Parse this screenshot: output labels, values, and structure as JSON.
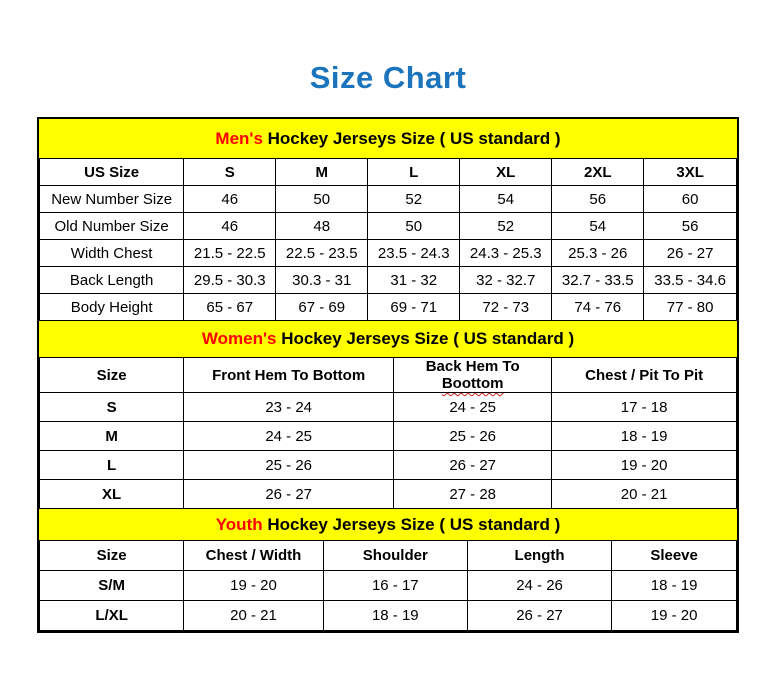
{
  "page": {
    "title": "Size Chart",
    "title_color": "#1c75bc",
    "background": "#ffffff"
  },
  "colors": {
    "banner_bg": "#ffff00",
    "accent_red": "#ff0000",
    "squiggle_red": "#cc1f1f",
    "border": "#000000",
    "text": "#000000"
  },
  "chart_data": [
    {
      "type": "table",
      "title": "Men's Hockey Jerseys Size ( US standard )",
      "title_highlight": "Men's",
      "title_rest": " Hockey Jerseys Size ( US standard )",
      "columns": [
        "US Size",
        "S",
        "M",
        "L",
        "XL",
        "2XL",
        "3XL"
      ],
      "rows": [
        {
          "label": "New Number Size",
          "values": [
            "46",
            "50",
            "52",
            "54",
            "56",
            "60"
          ]
        },
        {
          "label": "Old Number Size",
          "values": [
            "46",
            "48",
            "50",
            "52",
            "54",
            "56"
          ]
        },
        {
          "label": "Width Chest",
          "values": [
            "21.5 - 22.5",
            "22.5 - 23.5",
            "23.5 - 24.3",
            "24.3 - 25.3",
            "25.3 - 26",
            "26 - 27"
          ]
        },
        {
          "label": "Back Length",
          "values": [
            "29.5 - 30.3",
            "30.3 - 31",
            "31 - 32",
            "32 - 32.7",
            "32.7 - 33.5",
            "33.5 - 34.6"
          ]
        },
        {
          "label": "Body Height",
          "values": [
            "65 - 67",
            "67 - 69",
            "69 - 71",
            "72 - 73",
            "74 - 76",
            "77 - 80"
          ]
        }
      ],
      "col_widths_pct": [
        20.7,
        13.2,
        13.2,
        13.2,
        13.2,
        13.2,
        13.3
      ]
    },
    {
      "type": "table",
      "title": "Women's Hockey Jerseys Size ( US standard )",
      "title_highlight": "Women's",
      "title_rest": " Hockey Jerseys Size ( US standard )",
      "columns": [
        "Size",
        "Front Hem To Bottom",
        "Back Hem To Boottom",
        "Chest / Pit To Pit"
      ],
      "spellcheck_underline": {
        "column_index": 2,
        "word": "Boottom"
      },
      "rows": [
        {
          "label": "S",
          "values": [
            "23 - 24",
            "24 - 25",
            "17 - 18"
          ]
        },
        {
          "label": "M",
          "values": [
            "24 - 25",
            "25 - 26",
            "18 - 19"
          ]
        },
        {
          "label": "L",
          "values": [
            "25 - 26",
            "26 - 27",
            "19 - 20"
          ]
        },
        {
          "label": "XL",
          "values": [
            "26 - 27",
            "27 - 28",
            "20 - 21"
          ]
        }
      ],
      "col_widths_pct": [
        20.7,
        30.1,
        22.7,
        26.5
      ]
    },
    {
      "type": "table",
      "title": "Youth Hockey Jerseys Size ( US standard )",
      "title_highlight": "Youth",
      "title_rest": " Hockey Jerseys Size ( US standard )",
      "columns": [
        "Size",
        "Chest / Width",
        "Shoulder",
        "Length",
        "Sleeve"
      ],
      "rows": [
        {
          "label": "S/M",
          "values": [
            "19 - 20",
            "16 - 17",
            "24 - 26",
            "18 - 19"
          ]
        },
        {
          "label": "L/XL",
          "values": [
            "20 - 21",
            "18 - 19",
            "26 - 27",
            "19 - 20"
          ]
        }
      ],
      "col_widths_pct": [
        20.7,
        20.0,
        20.7,
        20.7,
        17.9
      ]
    }
  ]
}
